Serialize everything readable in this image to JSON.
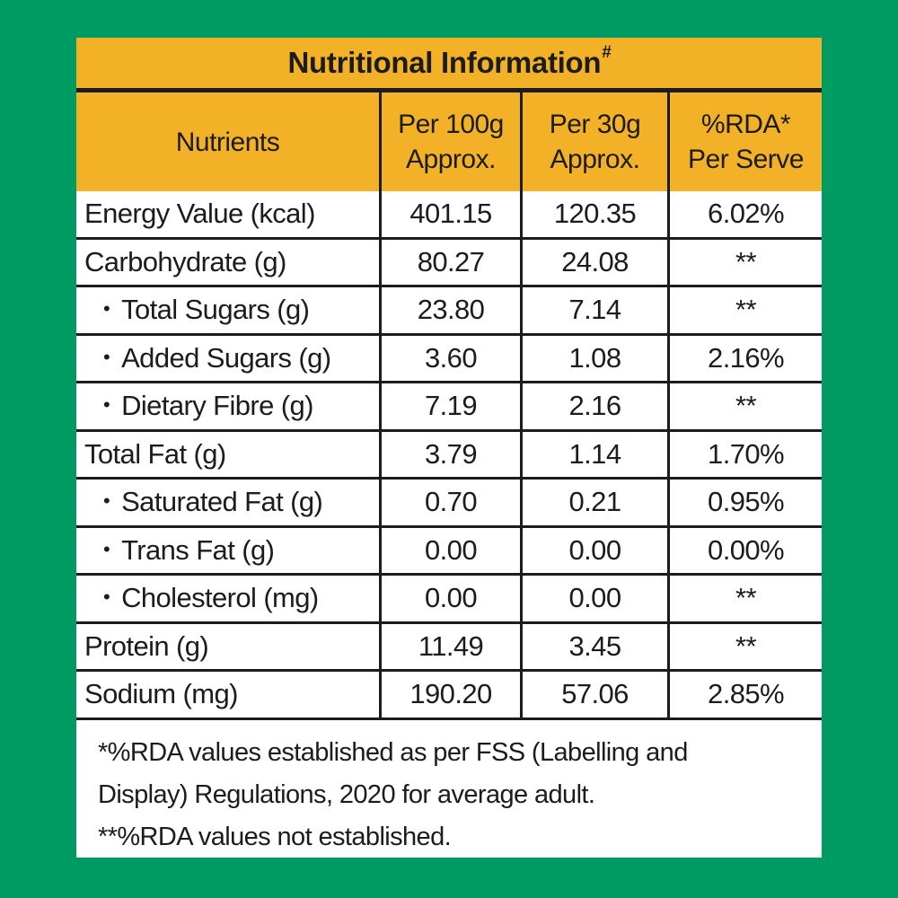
{
  "colors": {
    "page_bg": "#009B63",
    "header_bg": "#F3B127",
    "line": "#1C1C1C",
    "text": "#1C1C1C",
    "cell_bg": "#FFFFFF"
  },
  "table": {
    "title": "Nutritional Information",
    "title_superscript": "#",
    "bullet": "•",
    "header": {
      "col1": "Nutrients",
      "col2_line1": "Per 100g",
      "col2_line2": "Approx.",
      "col3_line1": "Per 30g",
      "col3_line2": "Approx.",
      "col4_line1": "%RDA*",
      "col4_line2": "Per Serve"
    },
    "rows": [
      {
        "label": "Energy Value (kcal)",
        "sub": false,
        "per_100g": "401.15",
        "per_30g": "120.35",
        "rda": "6.02%"
      },
      {
        "label": "Carbohydrate (g)",
        "sub": false,
        "per_100g": "80.27",
        "per_30g": "24.08",
        "rda": "**"
      },
      {
        "label": "Total Sugars (g)",
        "sub": true,
        "per_100g": "23.80",
        "per_30g": "7.14",
        "rda": "**"
      },
      {
        "label": "Added Sugars (g)",
        "sub": true,
        "per_100g": "3.60",
        "per_30g": "1.08",
        "rda": "2.16%"
      },
      {
        "label": "Dietary Fibre (g)",
        "sub": true,
        "per_100g": "7.19",
        "per_30g": "2.16",
        "rda": "**"
      },
      {
        "label": "Total Fat (g)",
        "sub": false,
        "per_100g": "3.79",
        "per_30g": "1.14",
        "rda": "1.70%"
      },
      {
        "label": "Saturated Fat (g)",
        "sub": true,
        "per_100g": "0.70",
        "per_30g": "0.21",
        "rda": "0.95%"
      },
      {
        "label": "Trans Fat (g)",
        "sub": true,
        "per_100g": "0.00",
        "per_30g": "0.00",
        "rda": "0.00%"
      },
      {
        "label": "Cholesterol (mg)",
        "sub": true,
        "per_100g": "0.00",
        "per_30g": "0.00",
        "rda": "**"
      },
      {
        "label": "Protein (g)",
        "sub": false,
        "per_100g": "11.49",
        "per_30g": "3.45",
        "rda": "**"
      },
      {
        "label": "Sodium (mg)",
        "sub": false,
        "per_100g": "190.20",
        "per_30g": "57.06",
        "rda": "2.85%"
      }
    ],
    "footnote_lines": [
      "*%RDA values established as per FSS (Labelling and",
      "Display) Regulations, 2020 for average adult.",
      "**%RDA values not established."
    ]
  }
}
